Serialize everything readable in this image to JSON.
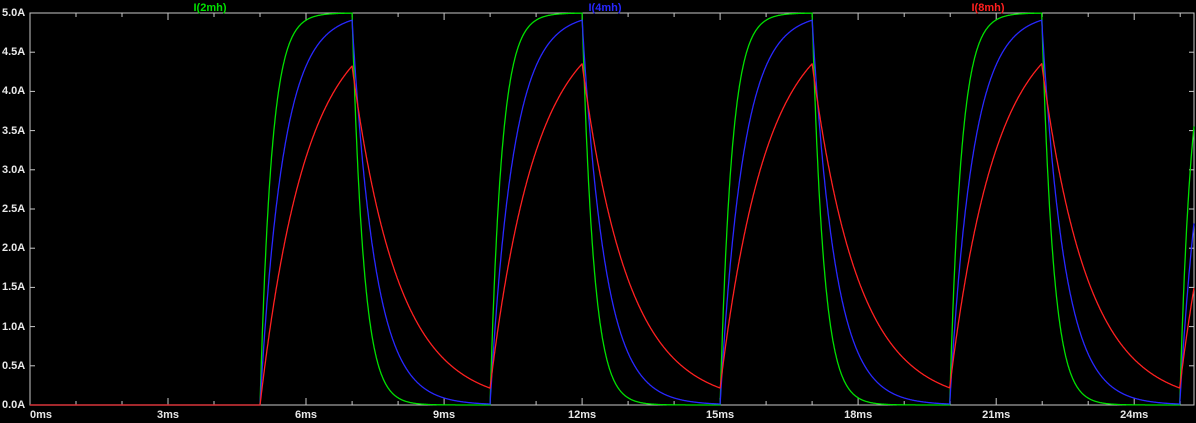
{
  "window": {
    "background": "#000000",
    "border_color": "#c8c8c8",
    "text_color": "#e8e8e8"
  },
  "chart_data": {
    "type": "line",
    "title": "",
    "x_unit": "ms",
    "y_unit": "A",
    "xlim": [
      0,
      25.3
    ],
    "ylim": [
      0,
      5
    ],
    "grid": false,
    "legend_position": "top",
    "x_ticks": [
      {
        "value": 0,
        "label": "0ms"
      },
      {
        "value": 3,
        "label": "3ms"
      },
      {
        "value": 6,
        "label": "6ms"
      },
      {
        "value": 9,
        "label": "9ms"
      },
      {
        "value": 12,
        "label": "12ms"
      },
      {
        "value": 15,
        "label": "15ms"
      },
      {
        "value": 18,
        "label": "18ms"
      },
      {
        "value": 21,
        "label": "21ms"
      },
      {
        "value": 24,
        "label": "24ms"
      }
    ],
    "y_ticks": [
      {
        "value": 5.0,
        "label": "5.0A"
      },
      {
        "value": 4.5,
        "label": "4.5A"
      },
      {
        "value": 4.0,
        "label": "4.0A"
      },
      {
        "value": 3.5,
        "label": "3.5A"
      },
      {
        "value": 3.0,
        "label": "3.0A"
      },
      {
        "value": 2.5,
        "label": "2.5A"
      },
      {
        "value": 2.0,
        "label": "2.0A"
      },
      {
        "value": 1.5,
        "label": "1.5A"
      },
      {
        "value": 1.0,
        "label": "1.0A"
      },
      {
        "value": 0.5,
        "label": "0.5A"
      },
      {
        "value": 0.0,
        "label": "0.0A"
      }
    ],
    "drive": {
      "amplitude_A": 5,
      "pulse_start_ms": 5,
      "pulse_on_ms": 2,
      "pulse_period_ms": 5,
      "sim_end_ms": 25.3,
      "initial_current_A": 0
    },
    "series": [
      {
        "name": "I(2mh)",
        "color": "#00e000",
        "tau_ms": 0.25,
        "peak_A": 5.0,
        "min_A": 0.0
      },
      {
        "name": "I(4mh)",
        "color": "#2828ff",
        "tau_ms": 0.5,
        "peak_A": 4.9,
        "min_A": 0.01
      },
      {
        "name": "I(8mh)",
        "color": "#ff2020",
        "tau_ms": 1.0,
        "peak_A": 4.35,
        "min_A": 0.22
      }
    ]
  }
}
